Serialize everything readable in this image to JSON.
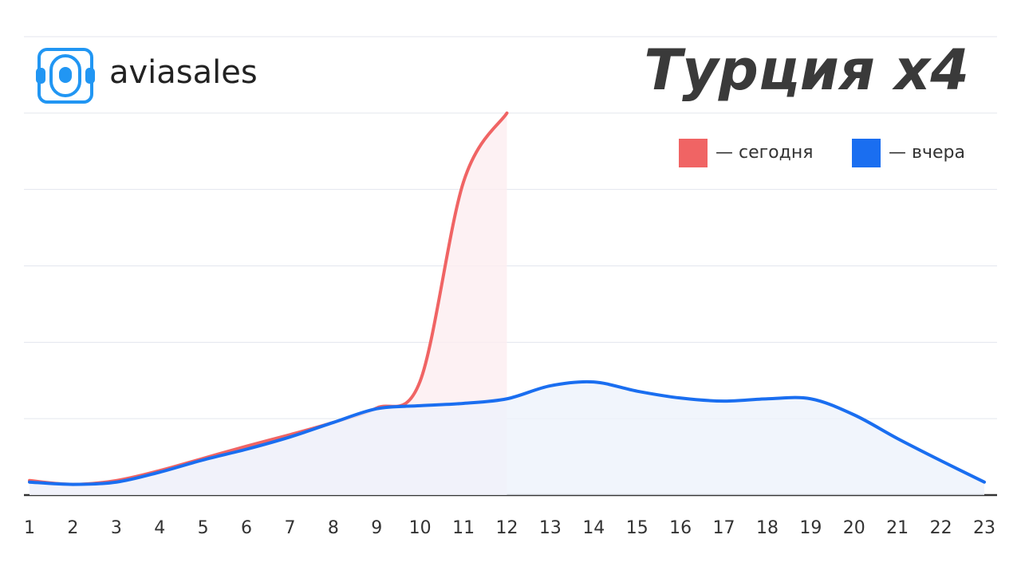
{
  "chart_data": {
    "type": "area",
    "title": "Турция x4",
    "brand": "aviasales",
    "categories": [
      "1",
      "2",
      "3",
      "4",
      "5",
      "6",
      "7",
      "8",
      "9",
      "10",
      "11",
      "12",
      "13",
      "14",
      "15",
      "16",
      "17",
      "18",
      "19",
      "20",
      "21",
      "22",
      "23"
    ],
    "series": [
      {
        "name": "— сегодня",
        "color": "#f06464",
        "fill": "#fdeef0",
        "values": [
          0.19,
          0.14,
          0.19,
          0.32,
          0.48,
          0.64,
          0.79,
          0.95,
          1.14,
          1.49,
          4.1,
          5.0,
          null,
          null,
          null,
          null,
          null,
          null,
          null,
          null,
          null,
          null,
          null
        ]
      },
      {
        "name": "— вчера",
        "color": "#1a6ef0",
        "fill": "#eef3fb",
        "values": [
          0.17,
          0.14,
          0.17,
          0.3,
          0.46,
          0.6,
          0.76,
          0.95,
          1.13,
          1.17,
          1.2,
          1.26,
          1.43,
          1.48,
          1.36,
          1.27,
          1.23,
          1.26,
          1.26,
          1.05,
          0.74,
          0.45,
          0.17
        ]
      }
    ],
    "ylim": [
      0,
      6
    ],
    "yticks": [
      0,
      1,
      2,
      3,
      4,
      5,
      6
    ],
    "grid": true,
    "legend": "top-right"
  }
}
